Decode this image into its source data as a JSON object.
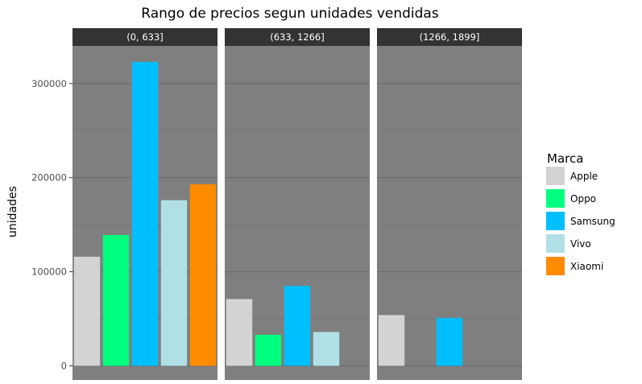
{
  "chart_data": {
    "type": "bar",
    "title": "Rango de precios segun unidades vendidas",
    "xlabel": "",
    "ylabel": "unidades",
    "ylim": [
      -15000,
      340000
    ],
    "yticks": [
      0,
      100000,
      200000,
      300000
    ],
    "grid": true,
    "legend_position": "right",
    "legend_title": "Marca",
    "categories": [
      "Apple",
      "Oppo",
      "Samsung",
      "Vivo",
      "Xiaomi"
    ],
    "colors": {
      "Apple": "#d3d3d3",
      "Oppo": "#00ff7f",
      "Samsung": "#00bfff",
      "Vivo": "#b0e0e6",
      "Xiaomi": "#ff8c00",
      "panel": "#7f7f7f",
      "strip": "#333333"
    },
    "panels": [
      {
        "label": "(0, 633]",
        "values": {
          "Apple": 116000,
          "Oppo": 139000,
          "Samsung": 323000,
          "Vivo": 176000,
          "Xiaomi": 193000
        }
      },
      {
        "label": "(633, 1266]",
        "values": {
          "Apple": 71000,
          "Oppo": 33000,
          "Samsung": 85000,
          "Vivo": 36000
        }
      },
      {
        "label": "(1266, 1899]",
        "values": {
          "Apple": 54000,
          "Samsung": 51000
        }
      }
    ]
  }
}
